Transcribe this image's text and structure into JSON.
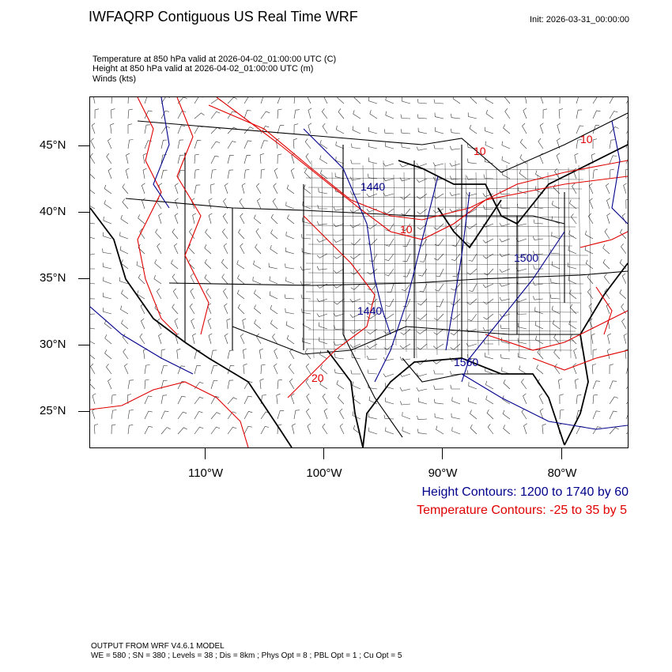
{
  "header": {
    "title": "IWFAQRP Contiguous US Real Time WRF",
    "init": "Init: 2026-03-31_00:00:00"
  },
  "fields": {
    "temperature": "Temperature at 850 hPa valid at 2026-04-02_01:00:00 UTC   (C)",
    "height": "Height at 850 hPa valid at 2026-04-02_01:00:00 UTC   (m)",
    "winds": "Winds   (kts)"
  },
  "map": {
    "lat_labels": [
      "45°N",
      "40°N",
      "35°N",
      "30°N",
      "25°N"
    ],
    "lon_labels": [
      "110°W",
      "100°W",
      "90°W",
      "80°W"
    ],
    "contour_labels": {
      "height": [
        "1440",
        "1440",
        "1500",
        "1560"
      ],
      "temperature": [
        "10",
        "10",
        "20",
        "10"
      ]
    },
    "colors": {
      "height": "#00008b",
      "temperature": "#e00000",
      "boundaries": "#000000"
    }
  },
  "legend": {
    "height": "Height Contours: 1200 to 1740 by 60",
    "temperature": "Temperature Contours: -25 to 35 by 5"
  },
  "footer": {
    "model": "OUTPUT FROM WRF V4.6.1 MODEL",
    "options": "WE = 580 ; SN = 380 ; Levels = 38 ; Dis = 8km ; Phys Opt = 8 ; PBL Opt = 1 ; Cu Opt = 5"
  }
}
